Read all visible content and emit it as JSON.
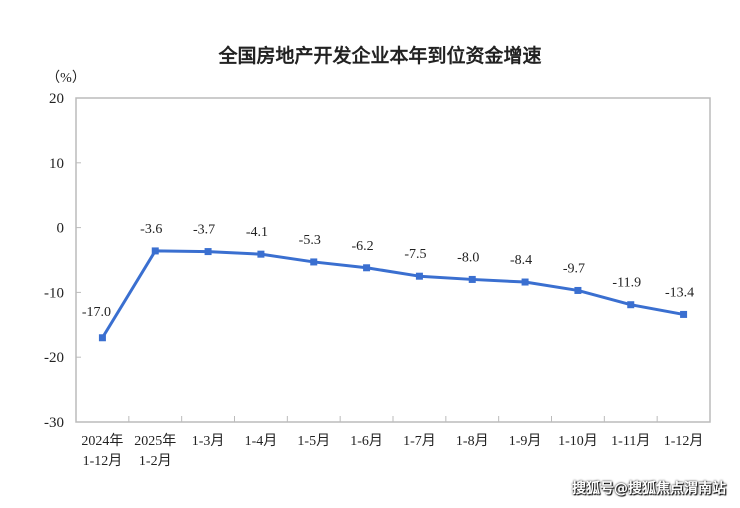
{
  "chart_data": {
    "type": "line",
    "title": "全国房地产开发企业本年到位资金增速",
    "ylabel": "（%）",
    "ylim": [
      -30,
      20
    ],
    "yticks": [
      20,
      10,
      0,
      -10,
      -20,
      -30
    ],
    "categories": [
      [
        "2024年",
        "1-12月"
      ],
      [
        "2025年",
        "1-2月"
      ],
      [
        "1-3月"
      ],
      [
        "1-4月"
      ],
      [
        "1-5月"
      ],
      [
        "1-6月"
      ],
      [
        "1-7月"
      ],
      [
        "1-8月"
      ],
      [
        "1-9月"
      ],
      [
        "1-10月"
      ],
      [
        "1-11月"
      ],
      [
        "1-12月"
      ]
    ],
    "values": [
      -17.0,
      -3.6,
      -3.7,
      -4.1,
      -5.3,
      -6.2,
      -7.5,
      -8.0,
      -8.4,
      -9.7,
      -11.9,
      -13.4
    ],
    "data_labels": [
      "-17.0",
      "-3.6",
      "-3.7",
      "-4.1",
      "-5.3",
      "-6.2",
      "-7.5",
      "-8.0",
      "-8.4",
      "-9.7",
      "-11.9",
      "-13.4"
    ],
    "grid": false,
    "line_color": "#3a6fd0"
  },
  "watermark": "搜狐号@搜狐焦点渭南站"
}
